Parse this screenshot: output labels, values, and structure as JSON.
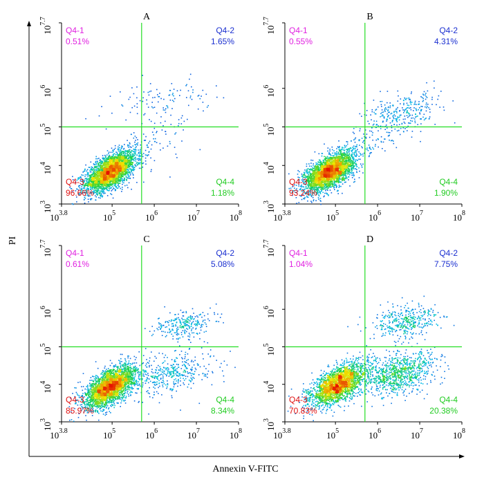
{
  "figure": {
    "ylabel": "PI",
    "xlabel": "Annexin V-FITC",
    "x_ticks": [
      {
        "base": "10",
        "exp": "3.8"
      },
      {
        "base": "10",
        "exp": "5"
      },
      {
        "base": "10",
        "exp": "6"
      },
      {
        "base": "10",
        "exp": "7"
      },
      {
        "base": "10",
        "exp": "8"
      }
    ],
    "y_ticks": [
      {
        "base": "10",
        "exp": "3"
      },
      {
        "base": "10",
        "exp": "4"
      },
      {
        "base": "10",
        "exp": "5"
      },
      {
        "base": "10",
        "exp": "6"
      },
      {
        "base": "10",
        "exp": "7.7"
      }
    ],
    "quadrant_colors": {
      "Q4-1": "#e020e0",
      "Q4-2": "#1a2fd0",
      "Q4-3": "#e01010",
      "Q4-4": "#22cc22"
    },
    "gate_color": "#22dd22"
  },
  "chart_data": [
    {
      "type": "scatter",
      "title": "A",
      "xscale": "log",
      "yscale": "log",
      "xlim": [
        3.8,
        8
      ],
      "ylim": [
        3,
        7.7
      ],
      "gates": {
        "x": 5.7,
        "y": 5.0
      },
      "quadrants": [
        {
          "name": "Q4-1",
          "percent": "0.51%"
        },
        {
          "name": "Q4-2",
          "percent": "1.65%"
        },
        {
          "name": "Q4-3",
          "percent": "96.66%"
        },
        {
          "name": "Q4-4",
          "percent": "1.18%"
        }
      ],
      "populations": [
        {
          "cx": 4.95,
          "cy": 3.85,
          "sx": 0.3,
          "sy": 0.26,
          "count": 3200,
          "rot": 0.6
        },
        {
          "cx": 6.2,
          "cy": 5.7,
          "sx": 0.55,
          "sy": 0.25,
          "count": 110,
          "rot": 0.3
        },
        {
          "cx": 5.9,
          "cy": 4.6,
          "sx": 0.45,
          "sy": 0.35,
          "count": 90,
          "rot": 0.5
        }
      ]
    },
    {
      "type": "scatter",
      "title": "B",
      "xscale": "log",
      "yscale": "log",
      "xlim": [
        3.8,
        8
      ],
      "ylim": [
        3,
        7.7
      ],
      "gates": {
        "x": 5.7,
        "y": 5.0
      },
      "quadrants": [
        {
          "name": "Q4-1",
          "percent": "0.55%"
        },
        {
          "name": "Q4-2",
          "percent": "4.31%"
        },
        {
          "name": "Q4-3",
          "percent": "93.24%"
        },
        {
          "name": "Q4-4",
          "percent": "1.90%"
        }
      ],
      "populations": [
        {
          "cx": 4.85,
          "cy": 3.85,
          "sx": 0.3,
          "sy": 0.26,
          "count": 3000,
          "rot": 0.6
        },
        {
          "cx": 6.6,
          "cy": 5.4,
          "sx": 0.45,
          "sy": 0.25,
          "count": 260,
          "rot": 0.5
        },
        {
          "cx": 6.0,
          "cy": 4.8,
          "sx": 0.5,
          "sy": 0.3,
          "count": 120,
          "rot": 0.5
        }
      ]
    },
    {
      "type": "scatter",
      "title": "C",
      "xscale": "log",
      "yscale": "log",
      "xlim": [
        3.8,
        8
      ],
      "ylim": [
        3,
        7.7
      ],
      "gates": {
        "x": 5.7,
        "y": 5.0
      },
      "quadrants": [
        {
          "name": "Q4-1",
          "percent": "0.61%"
        },
        {
          "name": "Q4-2",
          "percent": "5.08%"
        },
        {
          "name": "Q4-3",
          "percent": "85.97%"
        },
        {
          "name": "Q4-4",
          "percent": "8.34%"
        }
      ],
      "populations": [
        {
          "cx": 4.95,
          "cy": 3.95,
          "sx": 0.3,
          "sy": 0.28,
          "count": 2800,
          "rot": 0.6
        },
        {
          "cx": 6.4,
          "cy": 4.3,
          "sx": 0.5,
          "sy": 0.28,
          "count": 420,
          "rot": 0.4
        },
        {
          "cx": 6.7,
          "cy": 5.6,
          "sx": 0.35,
          "sy": 0.2,
          "count": 260,
          "rot": 0.3
        }
      ]
    },
    {
      "type": "scatter",
      "title": "D",
      "xscale": "log",
      "yscale": "log",
      "xlim": [
        3.8,
        8
      ],
      "ylim": [
        3,
        7.7
      ],
      "gates": {
        "x": 5.7,
        "y": 5.0
      },
      "quadrants": [
        {
          "name": "Q4-1",
          "percent": "1.04%"
        },
        {
          "name": "Q4-2",
          "percent": "7.75%"
        },
        {
          "name": "Q4-3",
          "percent": "70.83%"
        },
        {
          "name": "Q4-4",
          "percent": "20.38%"
        }
      ],
      "populations": [
        {
          "cx": 5.05,
          "cy": 4.0,
          "sx": 0.32,
          "sy": 0.28,
          "count": 2400,
          "rot": 0.6
        },
        {
          "cx": 6.5,
          "cy": 4.3,
          "sx": 0.45,
          "sy": 0.3,
          "count": 900,
          "rot": 0.4
        },
        {
          "cx": 6.7,
          "cy": 5.7,
          "sx": 0.4,
          "sy": 0.22,
          "count": 380,
          "rot": 0.3
        }
      ]
    }
  ]
}
